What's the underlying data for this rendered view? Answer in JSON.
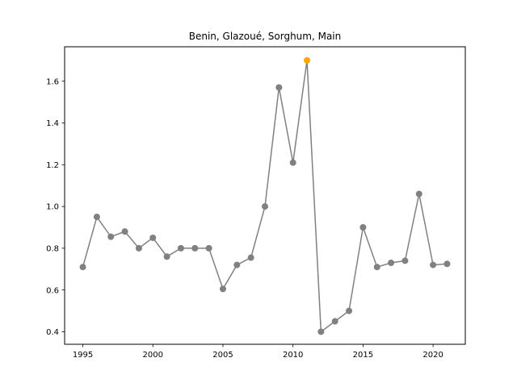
{
  "chart_data": {
    "type": "line",
    "title": "Benin, Glazoué, Sorghum, Main",
    "xlabel": "",
    "ylabel": "",
    "x": [
      1995,
      1996,
      1997,
      1998,
      1999,
      2000,
      2001,
      2002,
      2003,
      2004,
      2005,
      2006,
      2007,
      2008,
      2009,
      2010,
      2011,
      2012,
      2013,
      2014,
      2015,
      2016,
      2017,
      2018,
      2019,
      2020,
      2021
    ],
    "series": [
      {
        "values": [
          0.71,
          0.95,
          0.855,
          0.88,
          0.8,
          0.85,
          0.76,
          0.8,
          0.8,
          0.8,
          0.605,
          0.72,
          0.755,
          1.0,
          1.57,
          1.21,
          1.7,
          0.4,
          0.45,
          0.5,
          0.9,
          0.71,
          0.73,
          0.74,
          1.06,
          0.72,
          0.725
        ],
        "color": "#808080"
      }
    ],
    "highlight": {
      "x": 2011,
      "y": 1.7,
      "color": "#ffa500"
    },
    "xlim": [
      1993.7,
      2022.3
    ],
    "ylim": [
      0.34,
      1.765
    ],
    "xticks": [
      1995,
      2000,
      2005,
      2010,
      2015,
      2020
    ],
    "yticks": [
      0.4,
      0.6,
      0.8,
      1.0,
      1.2,
      1.4,
      1.6
    ],
    "ytick_labels": [
      "0.4",
      "0.6",
      "0.8",
      "1.0",
      "1.2",
      "1.4",
      "1.6"
    ],
    "grid": false,
    "legend": "none"
  }
}
